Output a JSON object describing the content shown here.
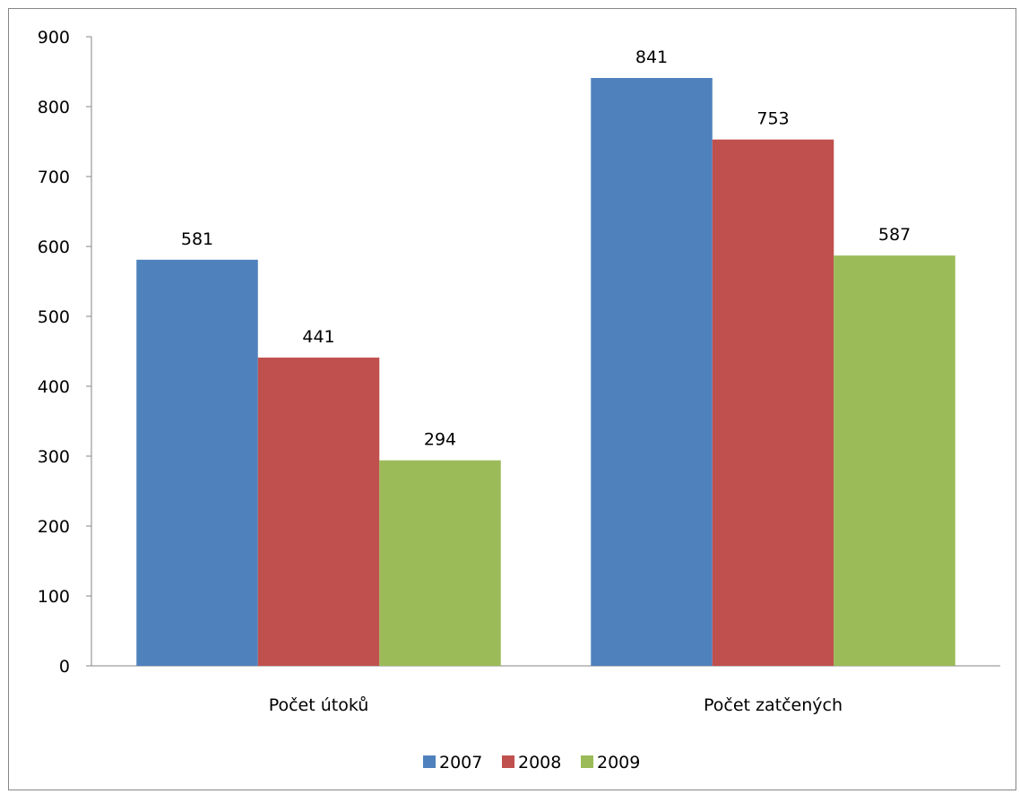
{
  "chart_data": {
    "type": "bar",
    "categories": [
      "Počet útoků",
      "Počet zatčených"
    ],
    "series": [
      {
        "name": "2007",
        "values": [
          581,
          841
        ],
        "color": "#4F81BD"
      },
      {
        "name": "2008",
        "values": [
          441,
          753
        ],
        "color": "#C0504D"
      },
      {
        "name": "2009",
        "values": [
          294,
          587
        ],
        "color": "#9BBB59"
      }
    ],
    "ylim": [
      0,
      900
    ],
    "yticks": [
      "0",
      "100",
      "200",
      "300",
      "400",
      "500",
      "600",
      "700",
      "800",
      "900"
    ],
    "legend_position": "bottom",
    "grid": false
  }
}
